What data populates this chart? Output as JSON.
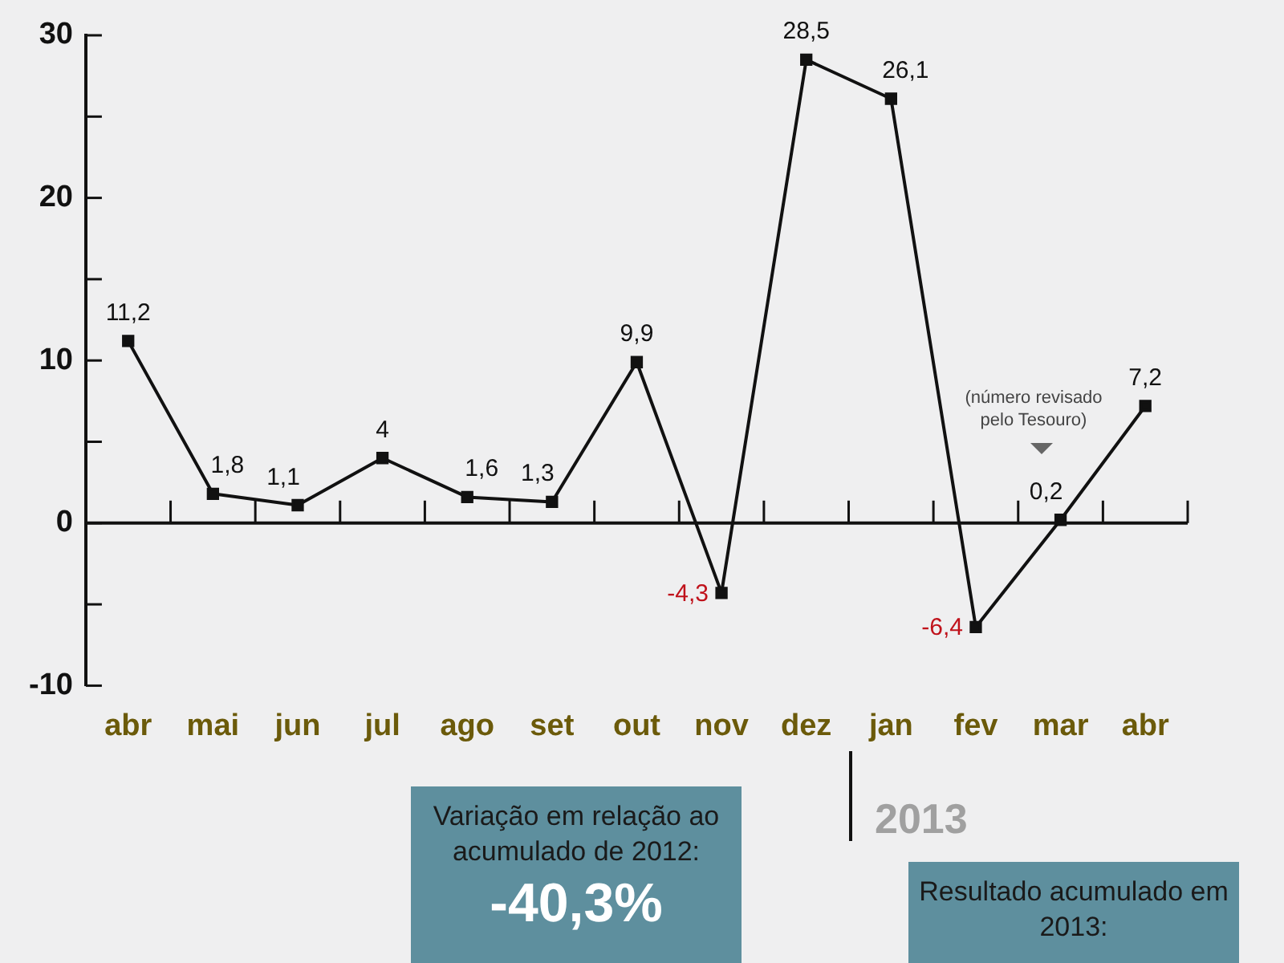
{
  "chart_data": {
    "type": "line",
    "categories": [
      "abr",
      "mai",
      "jun",
      "jul",
      "ago",
      "set",
      "out",
      "nov",
      "dez",
      "jan",
      "fev",
      "mar",
      "abr"
    ],
    "series": [
      {
        "color": "#111111",
        "values": [
          11.2,
          1.8,
          1.1,
          4,
          1.6,
          1.3,
          9.9,
          -4.3,
          28.5,
          26.1,
          -6.4,
          0.2,
          7.2
        ],
        "value_labels": [
          "11,2",
          "1,8",
          "1,1",
          "4",
          "1,6",
          "1,3",
          "9,9",
          "-4,3",
          "28,5",
          "26,1",
          "-6,4",
          "0,2",
          "7,2"
        ]
      }
    ],
    "ylim": [
      -10,
      30
    ],
    "yticks": [
      -10,
      {
        "value": -5,
        "label": null
      },
      0,
      {
        "value": 5,
        "label": null
      },
      10,
      {
        "value": 15,
        "label": null
      },
      20,
      {
        "value": 25,
        "label": null
      },
      30
    ],
    "legend": false,
    "marker": "square",
    "line_style": "solid",
    "annotations": [
      "(número revisado pelo Tesouro)",
      "2013",
      "Variação em relação ao acumulado de 2012:",
      "-40,3%",
      "Resultado acumulado em 2013:"
    ]
  }
}
